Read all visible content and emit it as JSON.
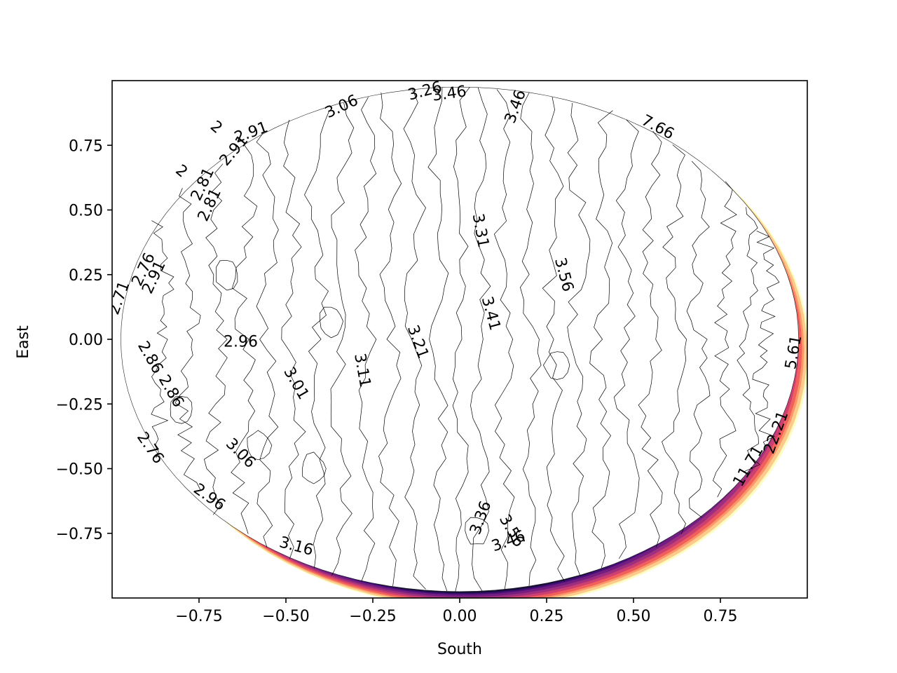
{
  "chart_data": {
    "type": "contour",
    "title": "",
    "xlabel": "South",
    "ylabel": "East",
    "xlim": [
      -1.0,
      1.0
    ],
    "ylim": [
      -1.0,
      1.0
    ],
    "grid": false,
    "colormap": "magma",
    "x_ticks": [
      {
        "value": -0.75,
        "label": "−0.75"
      },
      {
        "value": -0.5,
        "label": "−0.50"
      },
      {
        "value": -0.25,
        "label": "−0.25"
      },
      {
        "value": 0.0,
        "label": "0.00"
      },
      {
        "value": 0.25,
        "label": "0.25"
      },
      {
        "value": 0.5,
        "label": "0.50"
      },
      {
        "value": 0.75,
        "label": "0.75"
      }
    ],
    "y_ticks": [
      {
        "value": 0.75,
        "label": "0.75"
      },
      {
        "value": 0.5,
        "label": "0.50"
      },
      {
        "value": 0.25,
        "label": "0.25"
      },
      {
        "value": 0.0,
        "label": "0.00"
      },
      {
        "value": -0.25,
        "label": "−0.25"
      },
      {
        "value": -0.5,
        "label": "−0.50"
      },
      {
        "value": -0.75,
        "label": "−0.75"
      }
    ],
    "inner_levels": [
      -0.86,
      -0.78,
      -0.7,
      -0.62,
      -0.55,
      -0.48,
      -0.41,
      -0.34,
      -0.27,
      -0.2,
      -0.13,
      -0.06,
      0.0,
      0.06,
      0.13,
      0.2,
      0.27,
      0.34,
      0.41,
      0.48,
      0.55,
      0.62,
      0.69,
      0.76,
      0.83,
      0.88
    ],
    "contour_labels": [
      {
        "text": "3.26",
        "x": -0.1,
        "y": 0.96,
        "angle": -15
      },
      {
        "text": "3.46",
        "x": -0.03,
        "y": 0.95,
        "angle": -8
      },
      {
        "text": "3.06",
        "x": -0.34,
        "y": 0.9,
        "angle": -25
      },
      {
        "text": "3.46",
        "x": 0.16,
        "y": 0.9,
        "angle": -70
      },
      {
        "text": "7.66",
        "x": 0.57,
        "y": 0.82,
        "angle": 28
      },
      {
        "text": "2.91",
        "x": -0.6,
        "y": 0.8,
        "angle": -20
      },
      {
        "text": "2",
        "x": -0.7,
        "y": 0.82,
        "angle": 40
      },
      {
        "text": "2.91",
        "x": -0.65,
        "y": 0.73,
        "angle": -50
      },
      {
        "text": "2",
        "x": -0.8,
        "y": 0.65,
        "angle": 40
      },
      {
        "text": "2.81",
        "x": -0.74,
        "y": 0.6,
        "angle": -65
      },
      {
        "text": "2.81",
        "x": -0.72,
        "y": 0.52,
        "angle": -65
      },
      {
        "text": "3.31",
        "x": 0.06,
        "y": 0.42,
        "angle": 80
      },
      {
        "text": "3.56",
        "x": 0.3,
        "y": 0.25,
        "angle": 75
      },
      {
        "text": "2.76",
        "x": -0.91,
        "y": 0.27,
        "angle": -65
      },
      {
        "text": "2.91",
        "x": -0.88,
        "y": 0.24,
        "angle": -65
      },
      {
        "text": "2.71",
        "x": -0.98,
        "y": 0.16,
        "angle": -70
      },
      {
        "text": "3.41",
        "x": 0.09,
        "y": 0.1,
        "angle": 75
      },
      {
        "text": "3.21",
        "x": -0.12,
        "y": -0.01,
        "angle": 70
      },
      {
        "text": "2.96",
        "x": -0.63,
        "y": -0.01,
        "angle": 0
      },
      {
        "text": "3.11",
        "x": -0.28,
        "y": -0.12,
        "angle": 80
      },
      {
        "text": "3.01",
        "x": -0.47,
        "y": -0.17,
        "angle": 60
      },
      {
        "text": "2.86",
        "x": -0.89,
        "y": -0.07,
        "angle": 60
      },
      {
        "text": "2.86",
        "x": -0.83,
        "y": -0.2,
        "angle": 60
      },
      {
        "text": "5.61",
        "x": 0.96,
        "y": -0.05,
        "angle": -80
      },
      {
        "text": "22.21",
        "x": 0.91,
        "y": -0.36,
        "angle": -70
      },
      {
        "text": "2.76",
        "x": -0.89,
        "y": -0.42,
        "angle": 55
      },
      {
        "text": "3.06",
        "x": -0.63,
        "y": -0.44,
        "angle": 45
      },
      {
        "text": "11.71",
        "x": 0.83,
        "y": -0.49,
        "angle": -60
      },
      {
        "text": "2.96",
        "x": -0.72,
        "y": -0.61,
        "angle": 35
      },
      {
        "text": "3.36",
        "x": 0.06,
        "y": -0.69,
        "angle": -70
      },
      {
        "text": "3.56",
        "x": 0.15,
        "y": -0.74,
        "angle": 60
      },
      {
        "text": "3.46",
        "x": 0.14,
        "y": -0.78,
        "angle": -20
      },
      {
        "text": "3.16",
        "x": -0.47,
        "y": -0.8,
        "angle": 15
      }
    ]
  }
}
